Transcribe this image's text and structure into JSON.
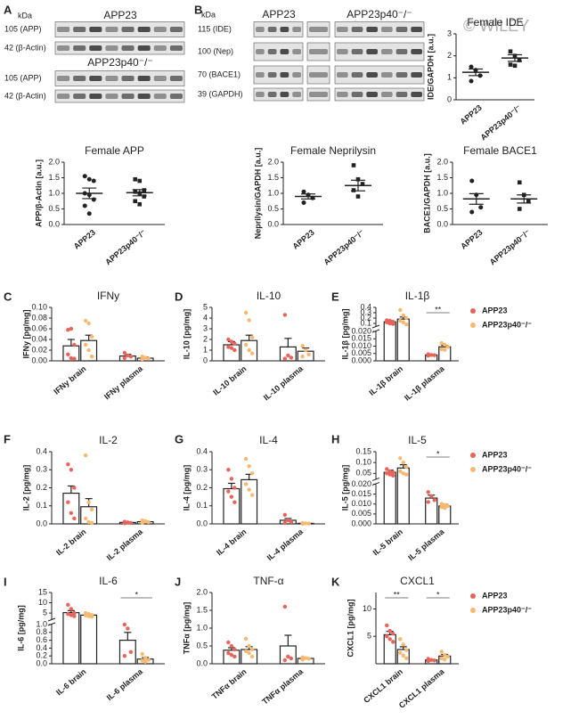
{
  "panel_letters": [
    "A",
    "B",
    "C",
    "D",
    "E",
    "F",
    "G",
    "H",
    "I",
    "J",
    "K"
  ],
  "watermark": "© WILEY",
  "blots": {
    "a": {
      "kda": "kDa",
      "rows": [
        "105 (APP)",
        "42 (β-Actin)",
        "105 (APP)",
        "42 (β-Actin)"
      ],
      "groups": [
        "APP23",
        "APP23p40⁻/⁻"
      ]
    },
    "b": {
      "kda": "kDa",
      "rows": [
        "115 (IDE)",
        "100 (Nep)",
        "70 (BACE1)",
        "39 (GAPDH)"
      ],
      "groups": [
        "APP23",
        "APP23p40⁻/⁻"
      ]
    }
  },
  "chart_data": [
    {
      "type": "dot",
      "title": "Female IDE",
      "ylabel": "IDE/GAPDH [a.u.]",
      "categories": [
        "APP23",
        "APP23p40⁻/⁻"
      ],
      "markers": [
        "circle",
        "square"
      ],
      "color": "#222222",
      "groups": [
        {
          "points": [
            1.5,
            1.35,
            1.1,
            0.85
          ],
          "mean": 1.25,
          "sem": 0.15
        },
        {
          "points": [
            2.2,
            2.0,
            1.8,
            1.6,
            1.55
          ],
          "mean": 1.9,
          "sem": 0.15
        }
      ],
      "ylim": [
        0,
        3
      ],
      "yticks": [
        0,
        1,
        2,
        3
      ]
    },
    {
      "type": "dot",
      "title": "Female APP",
      "ylabel": "APP/β-Actin [a.u.]",
      "categories": [
        "APP23",
        "APP23p40⁻/⁻"
      ],
      "markers": [
        "circle",
        "square"
      ],
      "color": "#222222",
      "groups": [
        {
          "points": [
            1.55,
            1.45,
            1.4,
            1.0,
            0.95,
            0.8,
            0.6,
            0.35
          ],
          "mean": 1.0,
          "sem": 0.17
        },
        {
          "points": [
            1.45,
            1.4,
            1.1,
            1.05,
            1.0,
            0.9,
            0.75,
            0.65
          ],
          "mean": 1.02,
          "sem": 0.1
        }
      ],
      "ylim": [
        0,
        2
      ],
      "yticks": [
        {
          "value": 0,
          "label": "0.0"
        },
        0.5,
        {
          "value": 1,
          "label": "1.0"
        },
        1.5,
        {
          "value": 2,
          "label": "2.0"
        }
      ]
    },
    {
      "type": "dot",
      "title": "Female Neprilysin",
      "ylabel": "Neprilysin/GAPDH [a.u.]",
      "categories": [
        "APP23",
        "APP23p40⁻/⁻"
      ],
      "markers": [
        "circle",
        "square"
      ],
      "color": "#222222",
      "groups": [
        {
          "points": [
            1.05,
            0.95,
            0.85,
            0.7
          ],
          "mean": 0.9,
          "sem": 0.08
        },
        {
          "points": [
            1.9,
            1.45,
            1.3,
            1.1,
            0.9
          ],
          "mean": 1.25,
          "sem": 0.17
        }
      ],
      "ylim": [
        0,
        2
      ],
      "yticks": [
        {
          "value": 0,
          "label": "0.0"
        },
        0.5,
        {
          "value": 1,
          "label": "1.0"
        },
        1.5,
        {
          "value": 2,
          "label": "2.0"
        }
      ]
    },
    {
      "type": "dot",
      "title": "Female BACE1",
      "ylabel": "BACE1/GAPDH [a.u.]",
      "categories": [
        "APP23",
        "APP23p40⁻/⁻"
      ],
      "markers": [
        "circle",
        "square"
      ],
      "color": "#222222",
      "groups": [
        {
          "points": [
            1.4,
            0.95,
            0.55,
            0.4
          ],
          "mean": 0.82,
          "sem": 0.17
        },
        {
          "points": [
            1.35,
            0.95,
            0.75,
            0.5
          ],
          "mean": 0.82,
          "sem": 0.13
        }
      ],
      "ylim": [
        0,
        2
      ],
      "yticks": [
        {
          "value": 0,
          "label": "0.0"
        },
        0.5,
        {
          "value": 1,
          "label": "1.0"
        },
        1.5,
        {
          "value": 2,
          "label": "2.0"
        }
      ]
    },
    {
      "type": "bar",
      "title": "IFNy",
      "ylabel": "IFNy [pg/mg]",
      "categories": [
        "IFNy brain",
        "IFNy plasma"
      ],
      "series": [
        {
          "color": "#e8645a",
          "values": [
            0.028,
            0.009
          ],
          "errors": [
            0.012,
            0.003
          ],
          "points": [
            [
              0.058,
              0.06,
              0.03,
              0.012,
              0.005,
              0.004
            ],
            [
              0.015,
              0.01,
              0.008,
              0.005
            ]
          ]
        },
        {
          "color": "#f7b870",
          "values": [
            0.038,
            0.005
          ],
          "errors": [
            0.01,
            0.002
          ],
          "points": [
            [
              0.075,
              0.07,
              0.045,
              0.03,
              0.02,
              0.008
            ],
            [
              0.008,
              0.006,
              0.004,
              0.003
            ]
          ]
        }
      ],
      "ylim": [
        0,
        0.1
      ],
      "yticks": [
        {
          "value": 0,
          "label": "0.00"
        },
        0.02,
        0.04,
        0.06,
        0.08,
        {
          "value": 0.1,
          "label": "0.10"
        }
      ]
    },
    {
      "type": "bar",
      "title": "IL-10",
      "ylabel": "IL-10 [pg/mg]",
      "categories": [
        "IL-10 brain",
        "IL-10 plasma"
      ],
      "series": [
        {
          "color": "#e8645a",
          "values": [
            1.5,
            1.3
          ],
          "errors": [
            0.3,
            0.8
          ],
          "points": [
            [
              2.0,
              1.8,
              1.6,
              1.3,
              1.2,
              1.0
            ],
            [
              4.3,
              0.5,
              0.3,
              0.2
            ]
          ]
        },
        {
          "color": "#f7b870",
          "values": [
            1.9,
            0.9
          ],
          "errors": [
            0.5,
            0.3
          ],
          "points": [
            [
              4.5,
              3.8,
              2.2,
              1.5,
              1.0,
              0.7
            ],
            [
              1.4,
              1.0,
              0.6,
              0.4
            ]
          ]
        }
      ],
      "ylim": [
        0,
        5
      ],
      "yticks": [
        0,
        1,
        2,
        3,
        4,
        5
      ]
    },
    {
      "type": "bar",
      "title": "IL-1β",
      "ylabel": "IL-1β [pg/mg]",
      "categories": [
        "IL-1β brain",
        "IL-1β plasma"
      ],
      "series": [
        {
          "name": "APP23",
          "color": "#e8645a",
          "values": [
            0.13,
            0.004
          ],
          "errors": [
            0.02,
            0.0005
          ],
          "points": [
            [
              0.16,
              0.15,
              0.13,
              0.12,
              0.1,
              0.09
            ],
            [
              0.0045,
              0.004,
              0.0038,
              0.0035
            ]
          ]
        },
        {
          "name": "APP23p40⁻/⁻",
          "color": "#f7b870",
          "values": [
            0.18,
            0.0095
          ],
          "errors": [
            0.04,
            0.001
          ],
          "points": [
            [
              0.35,
              0.25,
              0.2,
              0.15,
              0.12,
              0.08
            ],
            [
              0.012,
              0.011,
              0.0095,
              0.008,
              0.0075
            ]
          ]
        }
      ],
      "break": {
        "lower": {
          "ylim": [
            0,
            0.02
          ],
          "yticks": [
            {
              "value": 0,
              "label": "0.000"
            },
            0.005,
            {
              "value": 0.01,
              "label": "0.010"
            },
            0.015,
            {
              "value": 0.02,
              "label": "0.020"
            }
          ]
        },
        "upper": {
          "ylim": [
            0.05,
            0.4
          ],
          "yticks": [
            0.1,
            0.2,
            0.3,
            0.4
          ]
        }
      },
      "legend": true,
      "significance": [
        null,
        "**"
      ]
    },
    {
      "type": "bar",
      "title": "IL-2",
      "ylabel": "IL-2 [pg/mg]",
      "categories": [
        "IL-2 brain",
        "IL-2 plasma"
      ],
      "series": [
        {
          "color": "#e8645a",
          "values": [
            0.17,
            0.008
          ],
          "errors": [
            0.04,
            0.003
          ],
          "points": [
            [
              0.33,
              0.3,
              0.2,
              0.12,
              0.06,
              0.03
            ],
            [
              0.012,
              0.008,
              0.005,
              0.004
            ]
          ]
        },
        {
          "color": "#f7b870",
          "values": [
            0.095,
            0.012
          ],
          "errors": [
            0.045,
            0.003
          ],
          "points": [
            [
              0.38,
              0.12,
              0.08,
              0.03,
              0.01,
              0.005
            ],
            [
              0.02,
              0.015,
              0.01,
              0.006
            ]
          ]
        }
      ],
      "ylim": [
        0,
        0.4
      ],
      "yticks": [
        {
          "value": 0,
          "label": "0.0"
        },
        0.1,
        0.2,
        0.3,
        0.4
      ]
    },
    {
      "type": "bar",
      "title": "IL-4",
      "ylabel": "IL-4 [pg/mg]",
      "categories": [
        "IL-4 brain",
        "IL-4 plasma"
      ],
      "series": [
        {
          "color": "#e8645a",
          "values": [
            0.195,
            0.02
          ],
          "errors": [
            0.03,
            0.01
          ],
          "points": [
            [
              0.3,
              0.25,
              0.2,
              0.18,
              0.15,
              0.12
            ],
            [
              0.05,
              0.02,
              0.01,
              0.005
            ]
          ]
        },
        {
          "color": "#f7b870",
          "values": [
            0.245,
            0.003
          ],
          "errors": [
            0.03,
            0.001
          ],
          "points": [
            [
              0.36,
              0.32,
              0.28,
              0.22,
              0.19,
              0.16
            ],
            [
              0.005,
              0.003,
              0.002,
              0.001
            ]
          ]
        }
      ],
      "ylim": [
        0,
        0.4
      ],
      "yticks": [
        {
          "value": 0,
          "label": "0.0"
        },
        0.1,
        0.2,
        0.3,
        0.4
      ]
    },
    {
      "type": "bar",
      "title": "IL-5",
      "ylabel": "IL-5 [pg/mg]",
      "categories": [
        "IL-5 brain",
        "IL-5 plasma"
      ],
      "series": [
        {
          "name": "APP23",
          "color": "#e8645a",
          "values": [
            0.055,
            0.013
          ],
          "errors": [
            0.01,
            0.0015
          ],
          "points": [
            [
              0.07,
              0.06,
              0.055,
              0.05,
              0.045,
              0.04
            ],
            [
              0.016,
              0.014,
              0.012,
              0.011
            ]
          ]
        },
        {
          "name": "APP23p40⁻/⁻",
          "color": "#f7b870",
          "values": [
            0.075,
            0.009
          ],
          "errors": [
            0.015,
            0.0008
          ],
          "points": [
            [
              0.12,
              0.1,
              0.08,
              0.06,
              0.05,
              0.045
            ],
            [
              0.01,
              0.0095,
              0.009,
              0.0085,
              0.008
            ]
          ]
        }
      ],
      "break": {
        "lower": {
          "ylim": [
            0,
            0.02
          ],
          "yticks": [
            {
              "value": 0,
              "label": "0.000"
            },
            0.005,
            {
              "value": 0.01,
              "label": "0.010"
            },
            0.015,
            {
              "value": 0.02,
              "label": "0.020"
            }
          ]
        },
        "upper": {
          "ylim": [
            0.025,
            0.15
          ],
          "yticks": [
            0.05,
            {
              "value": 0.1,
              "label": "0.10"
            },
            0.15
          ]
        }
      },
      "legend": true,
      "significance": [
        null,
        "*"
      ]
    },
    {
      "type": "bar",
      "title": "IL-6",
      "ylabel": "IL-6 [pg/mg]",
      "categories": [
        "IL-6 brain",
        "IL-6 plasma"
      ],
      "series": [
        {
          "color": "#e8645a",
          "values": [
            5.2,
            0.6
          ],
          "errors": [
            1,
            0.2
          ],
          "points": [
            [
              9,
              7,
              5,
              4.5,
              4,
              3.5
            ],
            [
              1.0,
              0.9,
              0.3,
              0.2
            ]
          ]
        },
        {
          "color": "#f7b870",
          "values": [
            4.0,
            0.12
          ],
          "errors": [
            0.4,
            0.04
          ],
          "points": [
            [
              5,
              4.5,
              4,
              3.8,
              3.5,
              3.2
            ],
            [
              0.25,
              0.15,
              0.1,
              0.08,
              0.05
            ]
          ]
        }
      ],
      "break": {
        "lower": {
          "ylim": [
            0,
            1
          ],
          "yticks": [
            {
              "value": 0,
              "label": "0.0"
            },
            0.2,
            0.4,
            0.6,
            0.8,
            {
              "value": 1,
              "label": "1.0"
            }
          ]
        },
        "upper": {
          "ylim": [
            2,
            15
          ],
          "yticks": [
            5,
            10,
            15
          ]
        }
      },
      "significance": [
        null,
        "*"
      ]
    },
    {
      "type": "bar",
      "title": "TNF-α",
      "ylabel": "TNFα [pg/mg]",
      "categories": [
        "TNFα brain",
        "TNFα plasma"
      ],
      "series": [
        {
          "color": "#e8645a",
          "values": [
            0.38,
            0.5
          ],
          "errors": [
            0.07,
            0.3
          ],
          "points": [
            [
              0.6,
              0.5,
              0.4,
              0.3,
              0.25,
              0.2
            ],
            [
              1.6,
              0.2,
              0.15,
              0.1
            ]
          ]
        },
        {
          "color": "#f7b870",
          "values": [
            0.4,
            0.15
          ],
          "errors": [
            0.08,
            0.02
          ],
          "points": [
            [
              0.7,
              0.5,
              0.4,
              0.35,
              0.3,
              0.2
            ],
            [
              0.18,
              0.16,
              0.14,
              0.12
            ]
          ]
        }
      ],
      "ylim": [
        0,
        2
      ],
      "yticks": [
        {
          "value": 0,
          "label": "0.0"
        },
        0.5,
        {
          "value": 1,
          "label": "1.0"
        },
        1.5,
        {
          "value": 2,
          "label": "2.0"
        }
      ]
    },
    {
      "type": "bar",
      "title": "CXCL1",
      "ylabel": "CXCL1 [pg/mg]",
      "categories": [
        "CXCL1 brain",
        "CXCL1 plasma"
      ],
      "series": [
        {
          "name": "APP23",
          "color": "#e8645a",
          "values": [
            5.3,
            0.7
          ],
          "errors": [
            0.6,
            0.1
          ],
          "points": [
            [
              7,
              6,
              5.5,
              5,
              4.5,
              4
            ],
            [
              0.9,
              0.7,
              0.6,
              0.5
            ]
          ]
        },
        {
          "name": "APP23p40⁻/⁻",
          "color": "#f7b870",
          "values": [
            2.6,
            1.4
          ],
          "errors": [
            0.5,
            0.3
          ],
          "points": [
            [
              4.5,
              3.5,
              2.5,
              2,
              1.5,
              1
            ],
            [
              2.2,
              1.6,
              1.3,
              1.0,
              0.8
            ]
          ]
        }
      ],
      "ylim": [
        0,
        13
      ],
      "yticks": [
        5,
        10
      ],
      "legend": true,
      "significance": [
        "**",
        "*"
      ]
    }
  ]
}
